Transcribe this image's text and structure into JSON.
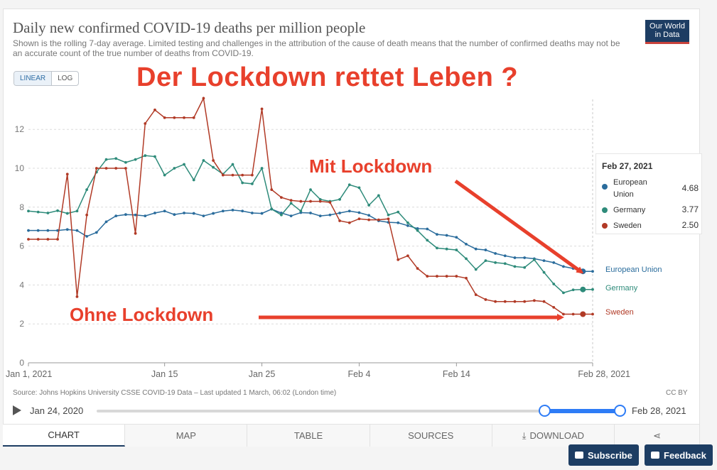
{
  "header": {
    "title": "Daily new confirmed COVID-19 deaths per million people",
    "subtitle": "Shown is the rolling 7-day average. Limited testing and challenges in the attribution of the cause of death means that the number of confirmed deaths may not be an accurate count of the true number of deaths from COVID-19.",
    "logo_line1": "Our World",
    "logo_line2": "in Data",
    "linear_label": "LINEAR",
    "log_label": "LOG"
  },
  "annotations": {
    "headline": "Der Lockdown rettet Leben ?",
    "with_lockdown": "Mit Lockdown",
    "without_lockdown": "Ohne Lockdown",
    "color": "#e8402c"
  },
  "legend": {
    "date": "Feb 27, 2021",
    "rows": [
      {
        "name": "European Union",
        "value": "4.68",
        "color": "#2a6c9c"
      },
      {
        "name": "Germany",
        "value": "3.77",
        "color": "#2e8b7a"
      },
      {
        "name": "Sweden",
        "value": "2.50",
        "color": "#b13a26"
      }
    ]
  },
  "chart_data": {
    "type": "line",
    "title": "Daily new confirmed COVID-19 deaths per million people",
    "x_start": "Jan 1, 2021",
    "x_end": "Feb 28, 2021",
    "x_ticks": [
      "Jan 1, 2021",
      "Jan 15",
      "Jan 25",
      "Feb 4",
      "Feb 14",
      "Feb 28, 2021"
    ],
    "x_tick_days": [
      1,
      15,
      25,
      35,
      45,
      59
    ],
    "y_ticks": [
      0,
      2,
      4,
      6,
      8,
      10,
      12
    ],
    "ylim": [
      0,
      13.5
    ],
    "grid": true,
    "days": [
      1,
      2,
      3,
      4,
      5,
      6,
      7,
      8,
      9,
      10,
      11,
      12,
      13,
      14,
      15,
      16,
      17,
      18,
      19,
      20,
      21,
      22,
      23,
      24,
      25,
      26,
      27,
      28,
      29,
      30,
      31,
      32,
      33,
      34,
      35,
      36,
      37,
      38,
      39,
      40,
      41,
      42,
      43,
      44,
      45,
      46,
      47,
      48,
      49,
      50,
      51,
      52,
      53,
      54,
      55,
      56,
      57,
      58,
      59
    ],
    "series": [
      {
        "name": "European Union",
        "color": "#2a6c9c",
        "values": [
          6.8,
          6.8,
          6.8,
          6.8,
          6.85,
          6.8,
          6.5,
          6.7,
          7.25,
          7.55,
          7.62,
          7.6,
          7.55,
          7.7,
          7.8,
          7.62,
          7.7,
          7.68,
          7.55,
          7.68,
          7.8,
          7.85,
          7.8,
          7.7,
          7.68,
          7.9,
          7.7,
          7.55,
          7.72,
          7.7,
          7.55,
          7.6,
          7.7,
          7.8,
          7.72,
          7.58,
          7.3,
          7.22,
          7.2,
          7.05,
          6.9,
          6.88,
          6.6,
          6.55,
          6.45,
          6.1,
          5.85,
          5.8,
          5.62,
          5.5,
          5.4,
          5.4,
          5.35,
          5.25,
          5.15,
          4.95,
          4.85,
          4.7,
          4.7
        ]
      },
      {
        "name": "Germany",
        "color": "#2e8b7a",
        "values": [
          7.8,
          7.75,
          7.7,
          7.82,
          7.68,
          7.8,
          8.9,
          9.8,
          10.45,
          10.5,
          10.3,
          10.45,
          10.65,
          10.6,
          9.65,
          10,
          10.2,
          9.4,
          10.4,
          10.05,
          9.7,
          10.2,
          9.25,
          9.2,
          10,
          7.9,
          7.6,
          8.2,
          7.8,
          8.9,
          8.4,
          8.3,
          8.4,
          9.15,
          9,
          8.1,
          8.6,
          7.6,
          7.75,
          7.2,
          6.8,
          6.3,
          5.9,
          5.85,
          5.8,
          5.35,
          4.8,
          5.25,
          5.15,
          5.1,
          4.95,
          4.9,
          5.3,
          4.65,
          4.05,
          3.6,
          3.75,
          3.77,
          3.77
        ]
      },
      {
        "name": "Sweden",
        "color": "#b13a26",
        "values": [
          6.35,
          6.35,
          6.35,
          6.35,
          9.7,
          3.4,
          7.6,
          10,
          10,
          10,
          10,
          6.65,
          12.3,
          13,
          12.6,
          12.6,
          12.6,
          12.6,
          13.6,
          10.4,
          9.65,
          9.65,
          9.65,
          9.65,
          13.05,
          8.9,
          8.5,
          8.35,
          8.3,
          8.3,
          8.3,
          8.25,
          7.3,
          7.2,
          7.4,
          7.35,
          7.35,
          7.4,
          5.3,
          5.5,
          4.85,
          4.45,
          4.45,
          4.45,
          4.45,
          4.35,
          3.5,
          3.25,
          3.15,
          3.15,
          3.15,
          3.15,
          3.2,
          3.15,
          2.85,
          2.5,
          2.5,
          2.5,
          2.5
        ]
      }
    ]
  },
  "footer": {
    "source": "Source: Johns Hopkins University CSSE COVID-19 Data – Last updated 1 March, 06:02 (London time)",
    "license": "CC BY",
    "time_start": "Jan 24, 2020",
    "time_end": "Feb 28, 2021",
    "range_fraction": [
      0.858,
      1.0
    ]
  },
  "tabs": [
    "CHART",
    "MAP",
    "TABLE",
    "SOURCES",
    "DOWNLOAD"
  ],
  "buttons": {
    "subscribe": "Subscribe",
    "feedback": "Feedback"
  }
}
